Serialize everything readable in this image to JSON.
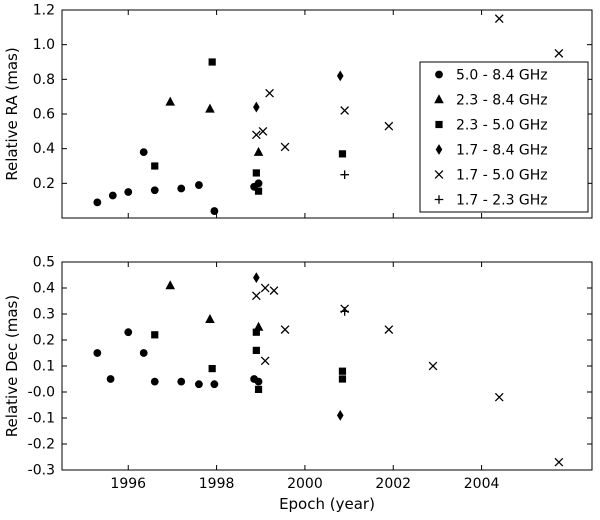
{
  "chart_data": {
    "type": "scatter",
    "title": "",
    "xlabel": "Epoch (year)",
    "xlim": [
      1994.5,
      2006.5
    ],
    "xticks": [
      1996,
      1998,
      2000,
      2002,
      2004
    ],
    "xtick_labels": [
      "1996",
      "1998",
      "2000",
      "2002",
      "2004"
    ],
    "marker_color": "#000000",
    "background": "#ffffff",
    "grid": false,
    "legend": {
      "position": "upper right",
      "entries": [
        {
          "label": "5.0 - 8.4 GHz",
          "marker": "circle"
        },
        {
          "label": "2.3 - 8.4 GHz",
          "marker": "triangle"
        },
        {
          "label": "2.3 - 5.0 GHz",
          "marker": "square"
        },
        {
          "label": "1.7 - 8.4 GHz",
          "marker": "diamond"
        },
        {
          "label": "1.7 - 5.0 GHz",
          "marker": "x"
        },
        {
          "label": "1.7 - 2.3 GHz",
          "marker": "plus"
        }
      ]
    },
    "plots": [
      {
        "name": "relative-ra",
        "ylabel": "Relative RA (mas)",
        "ylim": [
          0,
          1.2
        ],
        "yticks": [
          0.2,
          0.4,
          0.6,
          0.8,
          1.0,
          1.2
        ],
        "ytick_labels": [
          "0.2",
          "0.4",
          "0.6",
          "0.8",
          "1.0",
          "1.2"
        ],
        "show_x_tick_labels": false,
        "series": [
          {
            "name": "5.0 - 8.4 GHz",
            "marker": "circle",
            "points": [
              [
                1995.3,
                0.09
              ],
              [
                1995.65,
                0.13
              ],
              [
                1996.0,
                0.15
              ],
              [
                1996.35,
                0.38
              ],
              [
                1996.6,
                0.16
              ],
              [
                1997.2,
                0.17
              ],
              [
                1997.6,
                0.19
              ],
              [
                1997.95,
                0.04
              ],
              [
                1998.85,
                0.18
              ],
              [
                1998.95,
                0.2
              ]
            ]
          },
          {
            "name": "2.3 - 8.4 GHz",
            "marker": "triangle",
            "points": [
              [
                1996.95,
                0.67
              ],
              [
                1997.85,
                0.63
              ],
              [
                1998.95,
                0.38
              ]
            ]
          },
          {
            "name": "2.3 - 5.0 GHz",
            "marker": "square",
            "points": [
              [
                1996.6,
                0.3
              ],
              [
                1997.9,
                0.9
              ],
              [
                1998.9,
                0.26
              ],
              [
                1998.95,
                0.155
              ],
              [
                2000.85,
                0.37
              ]
            ]
          },
          {
            "name": "1.7 - 8.4 GHz",
            "marker": "diamond",
            "points": [
              [
                1998.9,
                0.64
              ],
              [
                2000.8,
                0.82
              ]
            ]
          },
          {
            "name": "1.7 - 5.0 GHz",
            "marker": "x",
            "points": [
              [
                1998.9,
                0.48
              ],
              [
                1999.05,
                0.5
              ],
              [
                1999.2,
                0.72
              ],
              [
                1999.55,
                0.41
              ],
              [
                2000.9,
                0.62
              ],
              [
                2001.9,
                0.53
              ],
              [
                2004.4,
                1.15
              ],
              [
                2005.75,
                0.95
              ]
            ]
          },
          {
            "name": "1.7 - 2.3 GHz",
            "marker": "plus",
            "points": [
              [
                2000.9,
                0.25
              ]
            ]
          }
        ]
      },
      {
        "name": "relative-dec",
        "ylabel": "Relative Dec (mas)",
        "ylim": [
          -0.3,
          0.5
        ],
        "yticks": [
          0.5,
          0.4,
          0.3,
          0.2,
          0.1,
          0.0,
          -0.1,
          -0.2,
          -0.3
        ],
        "ytick_labels": [
          "0.5",
          "0.4",
          "0.3",
          "0.2",
          "0.1",
          "-0.0",
          "-0.1",
          "-0.2",
          "-0.3"
        ],
        "show_x_tick_labels": true,
        "series": [
          {
            "name": "5.0 - 8.4 GHz",
            "marker": "circle",
            "points": [
              [
                1995.3,
                0.15
              ],
              [
                1995.6,
                0.05
              ],
              [
                1996.0,
                0.23
              ],
              [
                1996.35,
                0.15
              ],
              [
                1996.6,
                0.04
              ],
              [
                1997.2,
                0.04
              ],
              [
                1997.6,
                0.03
              ],
              [
                1997.95,
                0.03
              ],
              [
                1998.85,
                0.05
              ],
              [
                1998.95,
                0.04
              ]
            ]
          },
          {
            "name": "2.3 - 8.4 GHz",
            "marker": "triangle",
            "points": [
              [
                1996.95,
                0.41
              ],
              [
                1997.85,
                0.28
              ],
              [
                1998.95,
                0.25
              ]
            ]
          },
          {
            "name": "2.3 - 5.0 GHz",
            "marker": "square",
            "points": [
              [
                1996.6,
                0.22
              ],
              [
                1997.9,
                0.09
              ],
              [
                1998.9,
                0.23
              ],
              [
                1998.9,
                0.16
              ],
              [
                1998.95,
                0.01
              ],
              [
                2000.85,
                0.08
              ],
              [
                2000.85,
                0.05
              ]
            ]
          },
          {
            "name": "1.7 - 8.4 GHz",
            "marker": "diamond",
            "points": [
              [
                1998.9,
                0.44
              ],
              [
                2000.8,
                -0.09
              ]
            ]
          },
          {
            "name": "1.7 - 5.0 GHz",
            "marker": "x",
            "points": [
              [
                1998.9,
                0.37
              ],
              [
                1999.1,
                0.4
              ],
              [
                1999.3,
                0.39
              ],
              [
                1999.1,
                0.12
              ],
              [
                1999.55,
                0.24
              ],
              [
                2000.9,
                0.32
              ],
              [
                2001.9,
                0.24
              ],
              [
                2002.9,
                0.1
              ],
              [
                2004.4,
                -0.02
              ],
              [
                2005.75,
                -0.27
              ]
            ]
          },
          {
            "name": "1.7 - 2.3 GHz",
            "marker": "plus",
            "points": [
              [
                2000.9,
                0.31
              ]
            ]
          }
        ]
      }
    ]
  }
}
